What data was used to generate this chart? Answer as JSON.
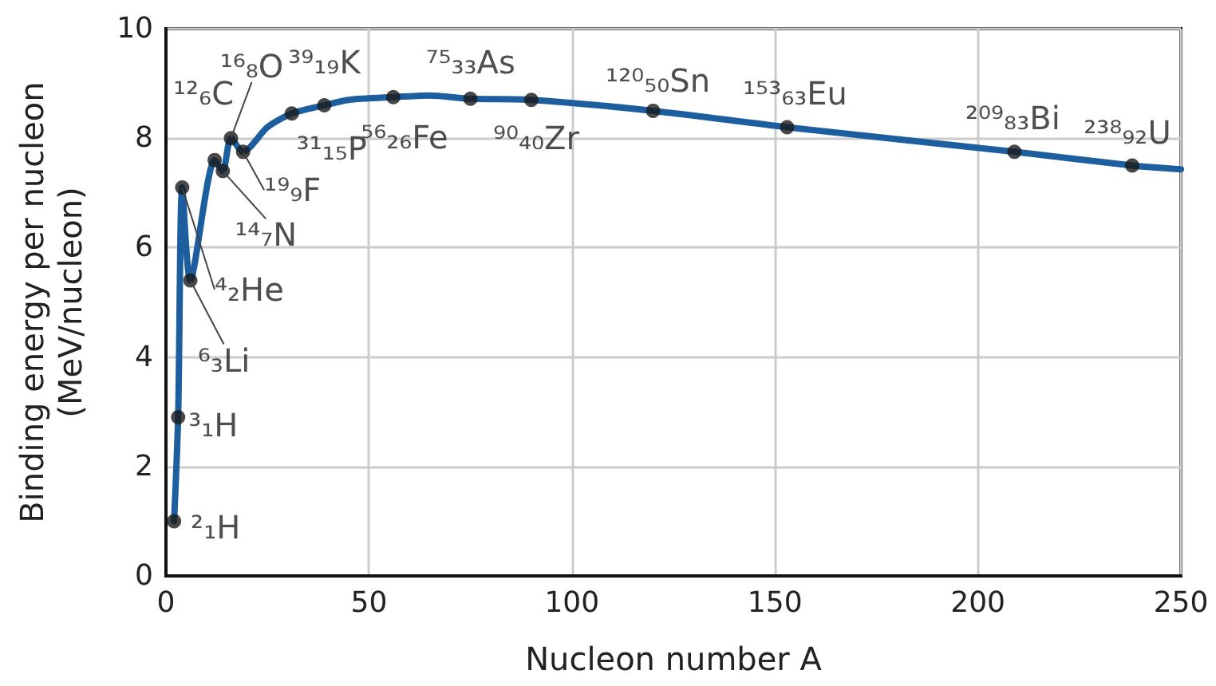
{
  "chart_data": {
    "type": "line",
    "xlabel": "Nucleon number A",
    "ylabel": "Binding energy per nucleon\n(MeV/nucleon)",
    "xlim": [
      0,
      250
    ],
    "xticks": [
      0,
      50,
      100,
      150,
      200,
      250
    ],
    "ylim": [
      0,
      10
    ],
    "yticks": [
      0,
      2,
      4,
      6,
      8,
      10
    ],
    "grid": true,
    "series": [
      {
        "color": "#1d5e9e",
        "marker": "none",
        "line_style": "solid",
        "x": [
          2,
          3,
          4,
          6,
          12,
          14,
          16,
          19,
          25,
          31,
          39,
          45,
          56,
          65,
          75,
          90,
          120,
          153,
          209,
          238,
          250
        ],
        "values": [
          1.0,
          2.9,
          7.1,
          5.4,
          7.6,
          7.4,
          8.0,
          7.75,
          8.2,
          8.45,
          8.6,
          8.7,
          8.75,
          8.78,
          8.72,
          8.7,
          8.5,
          8.2,
          7.75,
          7.5,
          7.43
        ]
      },
      {
        "type": "scatter",
        "color": "#1a1a1a",
        "marker": "circle",
        "x": [
          2,
          3,
          4,
          6,
          12,
          14,
          16,
          19,
          31,
          39,
          56,
          75,
          90,
          120,
          153,
          209,
          238
        ],
        "values": [
          1.0,
          2.9,
          7.1,
          5.4,
          7.6,
          7.4,
          8.0,
          7.75,
          8.45,
          8.6,
          8.75,
          8.72,
          8.7,
          8.5,
          8.2,
          7.75,
          7.5
        ]
      }
    ],
    "annotations": [
      {
        "text": "²₁H",
        "x": 2,
        "y": 1.0
      },
      {
        "text": "³₁H",
        "x": 3,
        "y": 2.9
      },
      {
        "text": "⁴₂He",
        "x": 4,
        "y": 7.1
      },
      {
        "text": "⁶₃Li",
        "x": 6,
        "y": 5.4
      },
      {
        "text": "¹²₆C",
        "x": 12,
        "y": 7.6
      },
      {
        "text": "¹⁴₇N",
        "x": 14,
        "y": 7.4
      },
      {
        "text": "¹⁶₈O",
        "x": 16,
        "y": 8.0
      },
      {
        "text": "¹⁹₉F",
        "x": 19,
        "y": 7.75
      },
      {
        "text": "³¹₁₅P",
        "x": 31,
        "y": 8.45
      },
      {
        "text": "³⁹₁₉K",
        "x": 39,
        "y": 8.6
      },
      {
        "text": "⁵⁶₂₆Fe",
        "x": 56,
        "y": 8.75
      },
      {
        "text": "⁷⁵₃₃As",
        "x": 75,
        "y": 8.72
      },
      {
        "text": "⁹⁰₄₀Zr",
        "x": 90,
        "y": 8.7
      },
      {
        "text": "¹²⁰₅₀Sn",
        "x": 120,
        "y": 8.5
      },
      {
        "text": "¹⁵³₆₃Eu",
        "x": 153,
        "y": 8.2
      },
      {
        "text": "²⁰⁹₈₃Bi",
        "x": 209,
        "y": 7.75
      },
      {
        "text": "²³⁸₉₂U",
        "x": 238,
        "y": 7.5
      }
    ]
  }
}
